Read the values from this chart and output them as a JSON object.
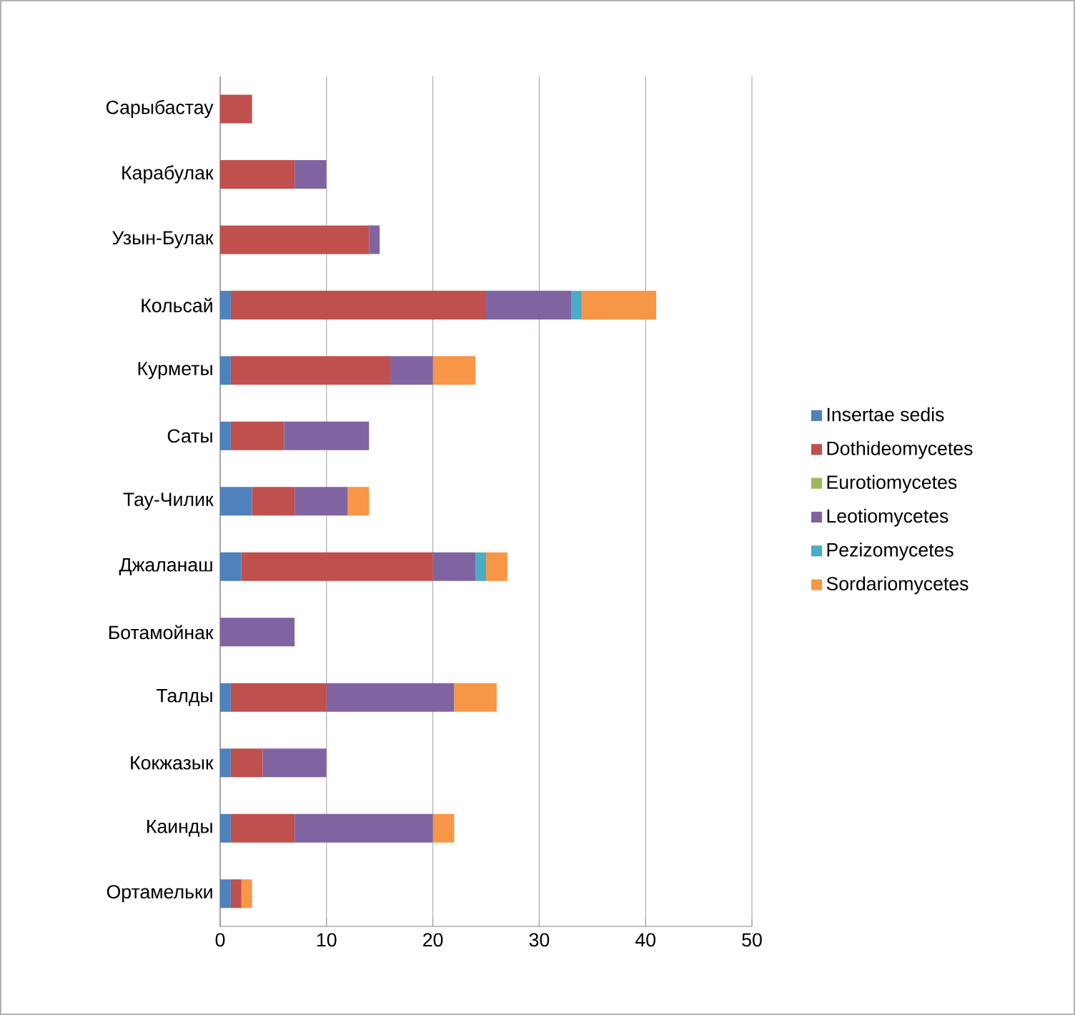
{
  "chart_data": {
    "type": "bar",
    "orientation": "horizontal",
    "stacked": true,
    "categories": [
      "Сарыбастау",
      "Карабулак",
      "Узын-Булак",
      "Кольсай",
      "Курметы",
      "Саты",
      "Тау-Чилик",
      "Джаланаш",
      "Ботамойнак",
      "Талды",
      "Кокжазык",
      "Каинды",
      "Ортамельки"
    ],
    "series": [
      {
        "name": "Insertae sedis",
        "color": "#4f81bd",
        "values": [
          0,
          0,
          0,
          1,
          1,
          1,
          3,
          2,
          0,
          1,
          1,
          1,
          1
        ]
      },
      {
        "name": "Dothideomycetes",
        "color": "#c0504d",
        "values": [
          3,
          7,
          14,
          24,
          15,
          5,
          4,
          18,
          0,
          9,
          3,
          6,
          1
        ]
      },
      {
        "name": "Eurotiomycetes",
        "color": "#9bbb59",
        "values": [
          0,
          0,
          0,
          0,
          0,
          0,
          0,
          0,
          0,
          0,
          0,
          0,
          0
        ]
      },
      {
        "name": "Leotiomycetes",
        "color": "#8064a2",
        "values": [
          0,
          3,
          1,
          8,
          4,
          8,
          5,
          4,
          7,
          12,
          6,
          13,
          0
        ]
      },
      {
        "name": "Pezizomycetes",
        "color": "#4bacc6",
        "values": [
          0,
          0,
          0,
          1,
          0,
          0,
          0,
          1,
          0,
          0,
          0,
          0,
          0
        ]
      },
      {
        "name": "Sordariomycetes",
        "color": "#f79646",
        "values": [
          0,
          0,
          0,
          7,
          4,
          0,
          2,
          2,
          0,
          4,
          0,
          2,
          1
        ]
      }
    ],
    "xlim": [
      0,
      50
    ],
    "xticks": [
      0,
      10,
      20,
      30,
      40,
      50
    ],
    "grid": "x",
    "legend": "right",
    "marker": "square"
  }
}
